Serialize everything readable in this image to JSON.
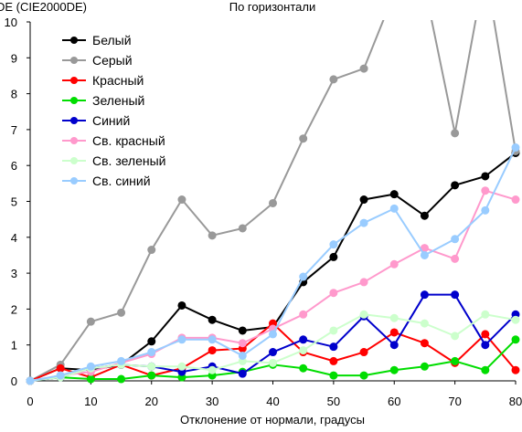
{
  "chart_data": {
    "type": "line",
    "title": "По горизонтали",
    "ylabel": "DE (CIE2000DE)",
    "xlabel": "Отклонение от нормали, градусы",
    "xlim": [
      0,
      80
    ],
    "ylim": [
      0,
      10
    ],
    "x_ticks": [
      "0",
      "10",
      "20",
      "30",
      "40",
      "50",
      "60",
      "70",
      "80"
    ],
    "y_ticks": [
      "0",
      "1",
      "2",
      "3",
      "4",
      "5",
      "6",
      "7",
      "8",
      "9",
      "10"
    ],
    "x": [
      0,
      5,
      10,
      15,
      20,
      25,
      30,
      35,
      40,
      45,
      50,
      55,
      60,
      65,
      70,
      75,
      80
    ],
    "grid": false,
    "legend_position": "top-left",
    "series": [
      {
        "name": "Белый",
        "color": "#000000",
        "values": [
          0,
          0.35,
          0.3,
          0.45,
          1.1,
          2.1,
          1.7,
          1.4,
          1.5,
          2.75,
          3.45,
          5.05,
          5.2,
          4.6,
          5.45,
          5.7,
          6.35
        ]
      },
      {
        "name": "Серый",
        "color": "#999999",
        "values": [
          0,
          0.45,
          1.65,
          1.9,
          3.65,
          5.05,
          4.05,
          4.25,
          4.95,
          6.75,
          8.4,
          8.7,
          10.8,
          11.0,
          6.9,
          11.5,
          6.4
        ]
      },
      {
        "name": "Красный",
        "color": "#ff0000",
        "values": [
          0,
          0.35,
          0.1,
          0.45,
          0.15,
          0.35,
          0.85,
          0.9,
          1.6,
          0.8,
          0.55,
          0.8,
          1.35,
          1.05,
          0.5,
          1.3,
          0.3
        ]
      },
      {
        "name": "Зеленый",
        "color": "#00dd00",
        "values": [
          0,
          0.1,
          0.05,
          0.05,
          0.15,
          0.1,
          0.15,
          0.25,
          0.45,
          0.35,
          0.15,
          0.15,
          0.3,
          0.4,
          0.55,
          0.3,
          1.15
        ]
      },
      {
        "name": "Синий",
        "color": "#0000cc",
        "values": [
          0,
          0.1,
          0.35,
          0.45,
          0.4,
          0.25,
          0.4,
          0.2,
          0.8,
          1.15,
          0.95,
          1.8,
          1.0,
          2.4,
          2.4,
          1.0,
          1.85
        ]
      },
      {
        "name": "Св. красный",
        "color": "#ff99cc",
        "values": [
          0,
          0.15,
          0.25,
          0.5,
          0.75,
          1.2,
          1.2,
          1.05,
          1.45,
          1.85,
          2.45,
          2.75,
          3.25,
          3.7,
          3.4,
          5.3,
          5.05
        ]
      },
      {
        "name": "Св. зеленый",
        "color": "#ccffcc",
        "values": [
          0,
          0.1,
          0.35,
          0.45,
          0.4,
          0.4,
          0.3,
          0.55,
          0.5,
          0.85,
          1.4,
          1.85,
          1.75,
          1.6,
          1.25,
          1.85,
          1.7
        ]
      },
      {
        "name": "Св. синий",
        "color": "#99ccff",
        "values": [
          0,
          0.15,
          0.4,
          0.55,
          0.8,
          1.15,
          1.15,
          0.7,
          1.3,
          2.9,
          3.8,
          4.4,
          4.8,
          3.5,
          3.95,
          4.75,
          6.5
        ]
      }
    ]
  }
}
